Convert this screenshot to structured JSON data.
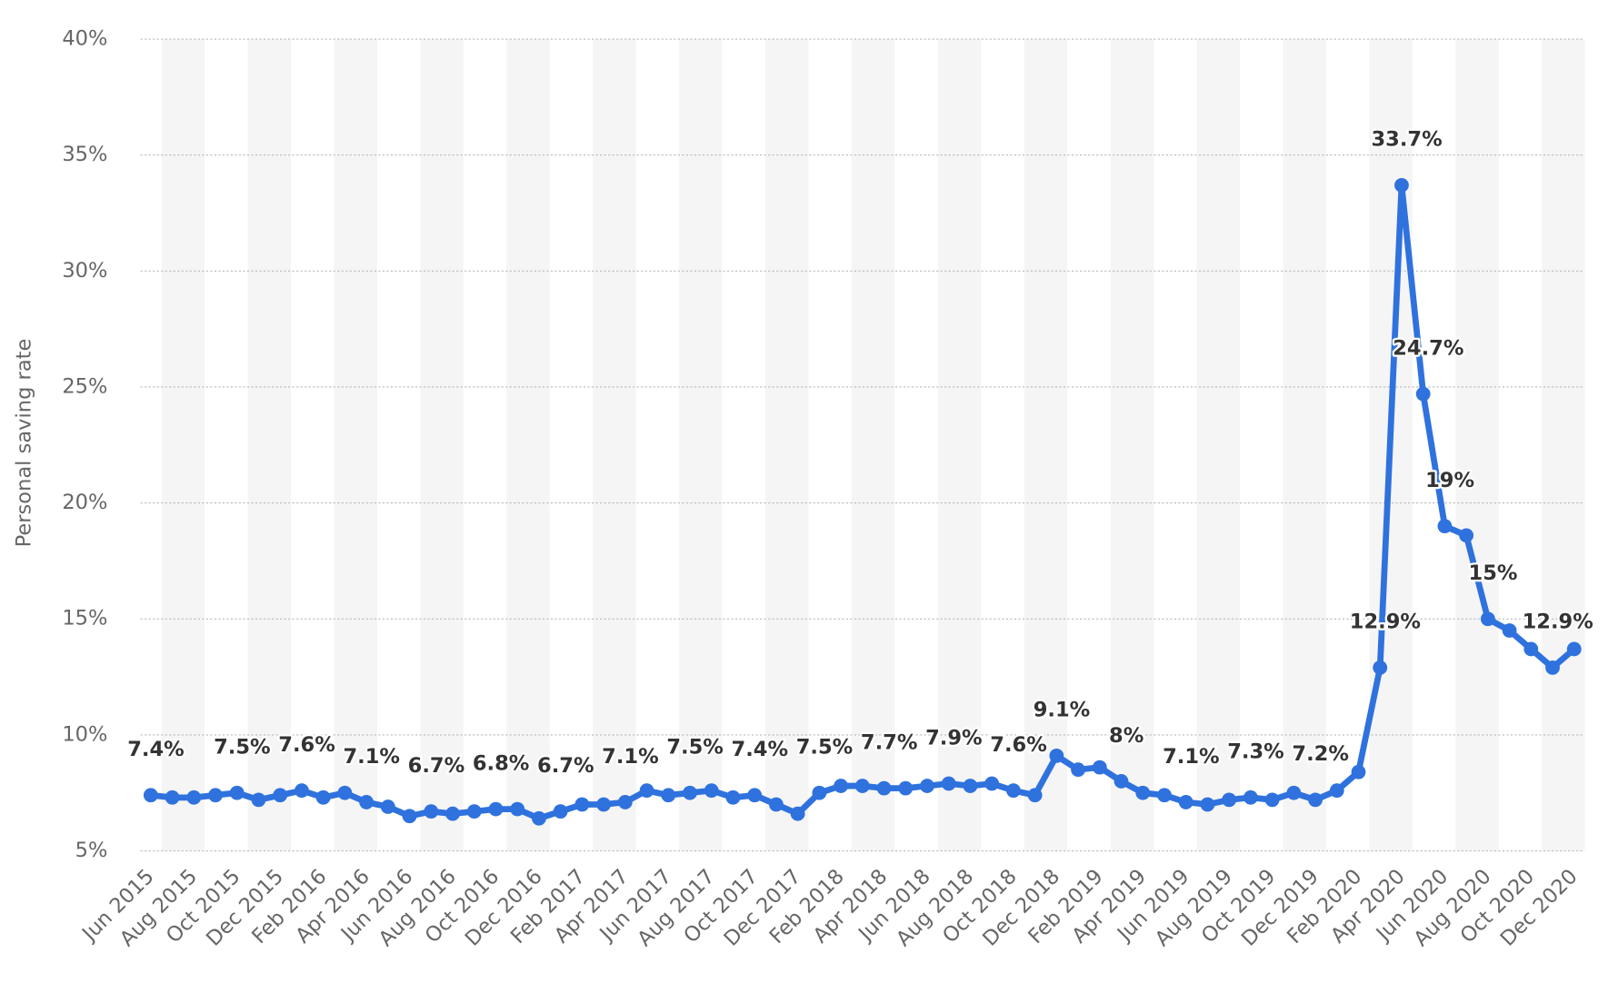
{
  "chart_data": {
    "type": "line",
    "ylabel": "Personal saving rate",
    "categories": [
      "Jun 2015",
      null,
      "Aug 2015",
      null,
      "Oct 2015",
      null,
      "Dec 2015",
      null,
      "Feb 2016",
      null,
      "Apr 2016",
      null,
      "Jun 2016",
      null,
      "Aug 2016",
      null,
      "Oct 2016",
      null,
      "Dec 2016",
      null,
      "Feb 2017",
      null,
      "Apr 2017",
      null,
      "Jun 2017",
      null,
      "Aug 2017",
      null,
      "Oct 2017",
      null,
      "Dec 2017",
      null,
      "Feb 2018",
      null,
      "Apr 2018",
      null,
      "Jun 2018",
      null,
      "Aug 2018",
      null,
      "Oct 2018",
      null,
      "Dec 2018",
      null,
      "Feb 2019",
      null,
      "Apr 2019",
      null,
      "Jun 2019",
      null,
      "Aug 2019",
      null,
      "Oct 2019",
      null,
      "Dec 2019",
      null,
      "Feb 2020",
      null,
      "Apr 2020",
      null,
      "Jun 2020",
      null,
      "Aug 2020",
      null,
      "Oct 2020",
      null,
      "Dec 2020"
    ],
    "values": [
      7.4,
      7.3,
      7.3,
      7.4,
      7.5,
      7.2,
      7.4,
      7.6,
      7.3,
      7.5,
      7.1,
      6.9,
      6.5,
      6.7,
      6.6,
      6.7,
      6.8,
      6.8,
      6.4,
      6.7,
      7.0,
      7.0,
      7.1,
      7.6,
      7.4,
      7.5,
      7.6,
      7.3,
      7.4,
      7.0,
      6.6,
      7.5,
      7.8,
      7.8,
      7.7,
      7.7,
      7.8,
      7.9,
      7.8,
      7.9,
      7.6,
      7.4,
      9.1,
      8.5,
      8.6,
      8.0,
      7.5,
      7.4,
      7.1,
      7.0,
      7.2,
      7.3,
      7.2,
      7.5,
      7.2,
      7.6,
      8.4,
      12.9,
      33.7,
      24.7,
      19.0,
      18.6,
      15.0,
      14.5,
      13.7,
      12.9,
      13.7
    ],
    "value_labels": [
      "7.4%",
      null,
      null,
      null,
      "7.5%",
      null,
      null,
      "7.6%",
      null,
      null,
      "7.1%",
      null,
      null,
      "6.7%",
      null,
      null,
      "6.8%",
      null,
      null,
      "6.7%",
      null,
      null,
      "7.1%",
      null,
      null,
      "7.5%",
      null,
      null,
      "7.4%",
      null,
      null,
      "7.5%",
      null,
      null,
      "7.7%",
      null,
      null,
      "7.9%",
      null,
      null,
      "7.6%",
      null,
      "9.1%",
      null,
      null,
      "8%",
      null,
      null,
      "7.1%",
      null,
      null,
      "7.3%",
      null,
      null,
      "7.2%",
      null,
      null,
      "12.9%",
      "33.7%",
      "24.7%",
      "19%",
      null,
      "15%",
      null,
      null,
      "12.9%",
      null
    ],
    "color": "#2f72de",
    "ylim": [
      5,
      40
    ],
    "yticks": [
      {
        "value": 5,
        "label": "5%"
      },
      {
        "value": 10,
        "label": "10%"
      },
      {
        "value": 15,
        "label": "15%"
      },
      {
        "value": 20,
        "label": "20%"
      },
      {
        "value": 25,
        "label": "25%"
      },
      {
        "value": 30,
        "label": "30%"
      },
      {
        "value": 35,
        "label": "35%"
      },
      {
        "value": 40,
        "label": "40%"
      }
    ],
    "grid": true
  }
}
